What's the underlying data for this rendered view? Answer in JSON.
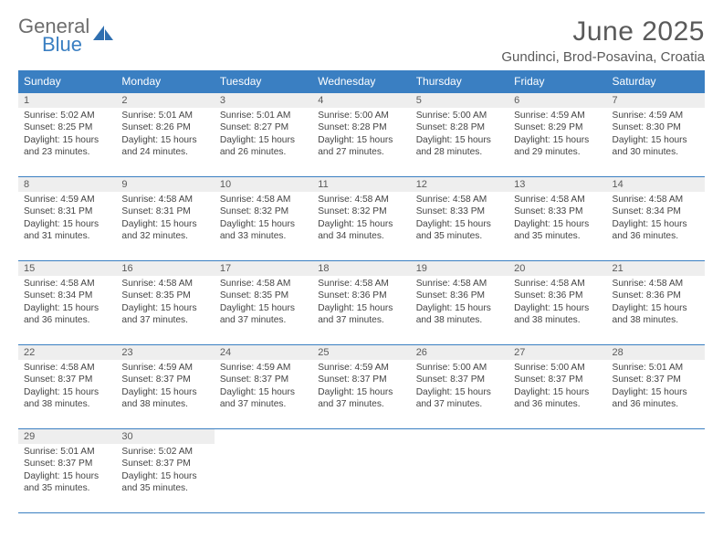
{
  "brand": {
    "top": "General",
    "bottom": "Blue"
  },
  "title": "June 2025",
  "location": "Gundinci, Brod-Posavina, Croatia",
  "colors": {
    "header_blue": "#3a7fc2",
    "daynum_bg": "#eeeeee",
    "text_gray": "#5a5a5a"
  },
  "dayNames": [
    "Sunday",
    "Monday",
    "Tuesday",
    "Wednesday",
    "Thursday",
    "Friday",
    "Saturday"
  ],
  "weeks": [
    [
      {
        "n": "1",
        "sr": "Sunrise: 5:02 AM",
        "ss": "Sunset: 8:25 PM",
        "dl": "Daylight: 15 hours and 23 minutes."
      },
      {
        "n": "2",
        "sr": "Sunrise: 5:01 AM",
        "ss": "Sunset: 8:26 PM",
        "dl": "Daylight: 15 hours and 24 minutes."
      },
      {
        "n": "3",
        "sr": "Sunrise: 5:01 AM",
        "ss": "Sunset: 8:27 PM",
        "dl": "Daylight: 15 hours and 26 minutes."
      },
      {
        "n": "4",
        "sr": "Sunrise: 5:00 AM",
        "ss": "Sunset: 8:28 PM",
        "dl": "Daylight: 15 hours and 27 minutes."
      },
      {
        "n": "5",
        "sr": "Sunrise: 5:00 AM",
        "ss": "Sunset: 8:28 PM",
        "dl": "Daylight: 15 hours and 28 minutes."
      },
      {
        "n": "6",
        "sr": "Sunrise: 4:59 AM",
        "ss": "Sunset: 8:29 PM",
        "dl": "Daylight: 15 hours and 29 minutes."
      },
      {
        "n": "7",
        "sr": "Sunrise: 4:59 AM",
        "ss": "Sunset: 8:30 PM",
        "dl": "Daylight: 15 hours and 30 minutes."
      }
    ],
    [
      {
        "n": "8",
        "sr": "Sunrise: 4:59 AM",
        "ss": "Sunset: 8:31 PM",
        "dl": "Daylight: 15 hours and 31 minutes."
      },
      {
        "n": "9",
        "sr": "Sunrise: 4:58 AM",
        "ss": "Sunset: 8:31 PM",
        "dl": "Daylight: 15 hours and 32 minutes."
      },
      {
        "n": "10",
        "sr": "Sunrise: 4:58 AM",
        "ss": "Sunset: 8:32 PM",
        "dl": "Daylight: 15 hours and 33 minutes."
      },
      {
        "n": "11",
        "sr": "Sunrise: 4:58 AM",
        "ss": "Sunset: 8:32 PM",
        "dl": "Daylight: 15 hours and 34 minutes."
      },
      {
        "n": "12",
        "sr": "Sunrise: 4:58 AM",
        "ss": "Sunset: 8:33 PM",
        "dl": "Daylight: 15 hours and 35 minutes."
      },
      {
        "n": "13",
        "sr": "Sunrise: 4:58 AM",
        "ss": "Sunset: 8:33 PM",
        "dl": "Daylight: 15 hours and 35 minutes."
      },
      {
        "n": "14",
        "sr": "Sunrise: 4:58 AM",
        "ss": "Sunset: 8:34 PM",
        "dl": "Daylight: 15 hours and 36 minutes."
      }
    ],
    [
      {
        "n": "15",
        "sr": "Sunrise: 4:58 AM",
        "ss": "Sunset: 8:34 PM",
        "dl": "Daylight: 15 hours and 36 minutes."
      },
      {
        "n": "16",
        "sr": "Sunrise: 4:58 AM",
        "ss": "Sunset: 8:35 PM",
        "dl": "Daylight: 15 hours and 37 minutes."
      },
      {
        "n": "17",
        "sr": "Sunrise: 4:58 AM",
        "ss": "Sunset: 8:35 PM",
        "dl": "Daylight: 15 hours and 37 minutes."
      },
      {
        "n": "18",
        "sr": "Sunrise: 4:58 AM",
        "ss": "Sunset: 8:36 PM",
        "dl": "Daylight: 15 hours and 37 minutes."
      },
      {
        "n": "19",
        "sr": "Sunrise: 4:58 AM",
        "ss": "Sunset: 8:36 PM",
        "dl": "Daylight: 15 hours and 38 minutes."
      },
      {
        "n": "20",
        "sr": "Sunrise: 4:58 AM",
        "ss": "Sunset: 8:36 PM",
        "dl": "Daylight: 15 hours and 38 minutes."
      },
      {
        "n": "21",
        "sr": "Sunrise: 4:58 AM",
        "ss": "Sunset: 8:36 PM",
        "dl": "Daylight: 15 hours and 38 minutes."
      }
    ],
    [
      {
        "n": "22",
        "sr": "Sunrise: 4:58 AM",
        "ss": "Sunset: 8:37 PM",
        "dl": "Daylight: 15 hours and 38 minutes."
      },
      {
        "n": "23",
        "sr": "Sunrise: 4:59 AM",
        "ss": "Sunset: 8:37 PM",
        "dl": "Daylight: 15 hours and 38 minutes."
      },
      {
        "n": "24",
        "sr": "Sunrise: 4:59 AM",
        "ss": "Sunset: 8:37 PM",
        "dl": "Daylight: 15 hours and 37 minutes."
      },
      {
        "n": "25",
        "sr": "Sunrise: 4:59 AM",
        "ss": "Sunset: 8:37 PM",
        "dl": "Daylight: 15 hours and 37 minutes."
      },
      {
        "n": "26",
        "sr": "Sunrise: 5:00 AM",
        "ss": "Sunset: 8:37 PM",
        "dl": "Daylight: 15 hours and 37 minutes."
      },
      {
        "n": "27",
        "sr": "Sunrise: 5:00 AM",
        "ss": "Sunset: 8:37 PM",
        "dl": "Daylight: 15 hours and 36 minutes."
      },
      {
        "n": "28",
        "sr": "Sunrise: 5:01 AM",
        "ss": "Sunset: 8:37 PM",
        "dl": "Daylight: 15 hours and 36 minutes."
      }
    ],
    [
      {
        "n": "29",
        "sr": "Sunrise: 5:01 AM",
        "ss": "Sunset: 8:37 PM",
        "dl": "Daylight: 15 hours and 35 minutes."
      },
      {
        "n": "30",
        "sr": "Sunrise: 5:02 AM",
        "ss": "Sunset: 8:37 PM",
        "dl": "Daylight: 15 hours and 35 minutes."
      },
      null,
      null,
      null,
      null,
      null
    ]
  ]
}
